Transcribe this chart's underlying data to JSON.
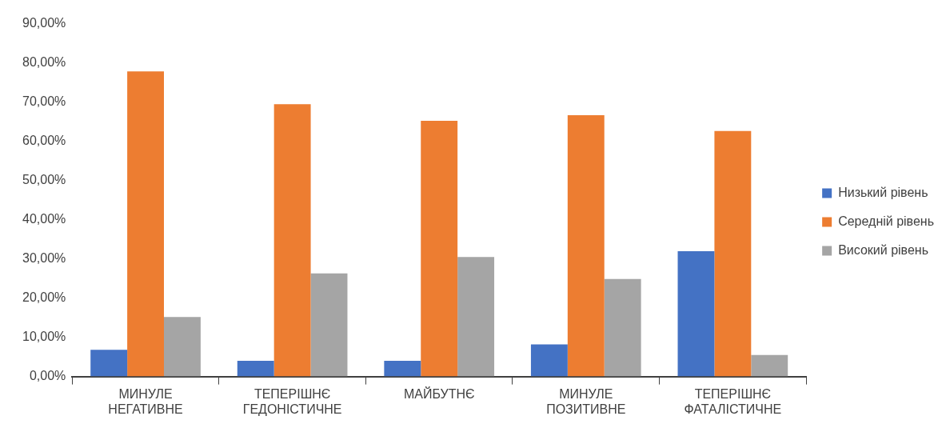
{
  "chart_data": {
    "type": "bar",
    "categories": [
      "МИНУЛЕ НЕГАТИВНЕ",
      "ТЕПЕРІШНЄ ГЕДОНІСТИЧНЕ",
      "МАЙБУТНЄ",
      "МИНУЛЕ ПОЗИТИВНЕ",
      "ТЕПЕРІШНЄ ФАТАЛІСТИЧНЕ"
    ],
    "series": [
      {
        "name": "Низький рівень",
        "color": "#4472c4",
        "values": [
          6.8,
          4.0,
          4.0,
          8.2,
          32.0
        ]
      },
      {
        "name": "Середній рівень",
        "color": "#ed7d31",
        "values": [
          77.9,
          69.5,
          65.3,
          66.7,
          62.7
        ]
      },
      {
        "name": "Високий рівень",
        "color": "#a5a5a5",
        "values": [
          15.2,
          26.3,
          30.5,
          24.9,
          5.5
        ]
      }
    ],
    "ylim": [
      0,
      90
    ],
    "yticks": [
      {
        "value": 0,
        "label": "0,00%"
      },
      {
        "value": 10,
        "label": "10,00%"
      },
      {
        "value": 20,
        "label": "20,00%"
      },
      {
        "value": 30,
        "label": "30,00%"
      },
      {
        "value": 40,
        "label": "40,00%"
      },
      {
        "value": 50,
        "label": "50,00%"
      },
      {
        "value": 60,
        "label": "60,00%"
      },
      {
        "value": 70,
        "label": "70,00%"
      },
      {
        "value": 80,
        "label": "80,00%"
      },
      {
        "value": 90,
        "label": "90,00%"
      }
    ],
    "grid": false,
    "legend": "right"
  }
}
